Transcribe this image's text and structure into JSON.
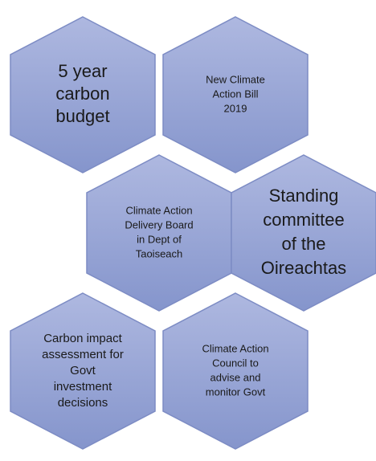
{
  "nodes": [
    {
      "lines": [
        "5 year",
        "carbon",
        "budget"
      ]
    },
    {
      "lines": [
        "New Climate",
        "Action Bill",
        "2019"
      ]
    },
    {
      "lines": [
        "Climate Action",
        "Delivery Board",
        "in Dept of",
        "Taoiseach"
      ]
    },
    {
      "lines": [
        "Standing",
        "committee",
        "of the",
        "Oireachtas"
      ]
    },
    {
      "lines": [
        "Carbon impact",
        "assessment for",
        "Govt",
        "investment",
        "decisions"
      ]
    },
    {
      "lines": [
        "Climate Action",
        "Council to",
        "advise and",
        "monitor Govt"
      ]
    }
  ]
}
